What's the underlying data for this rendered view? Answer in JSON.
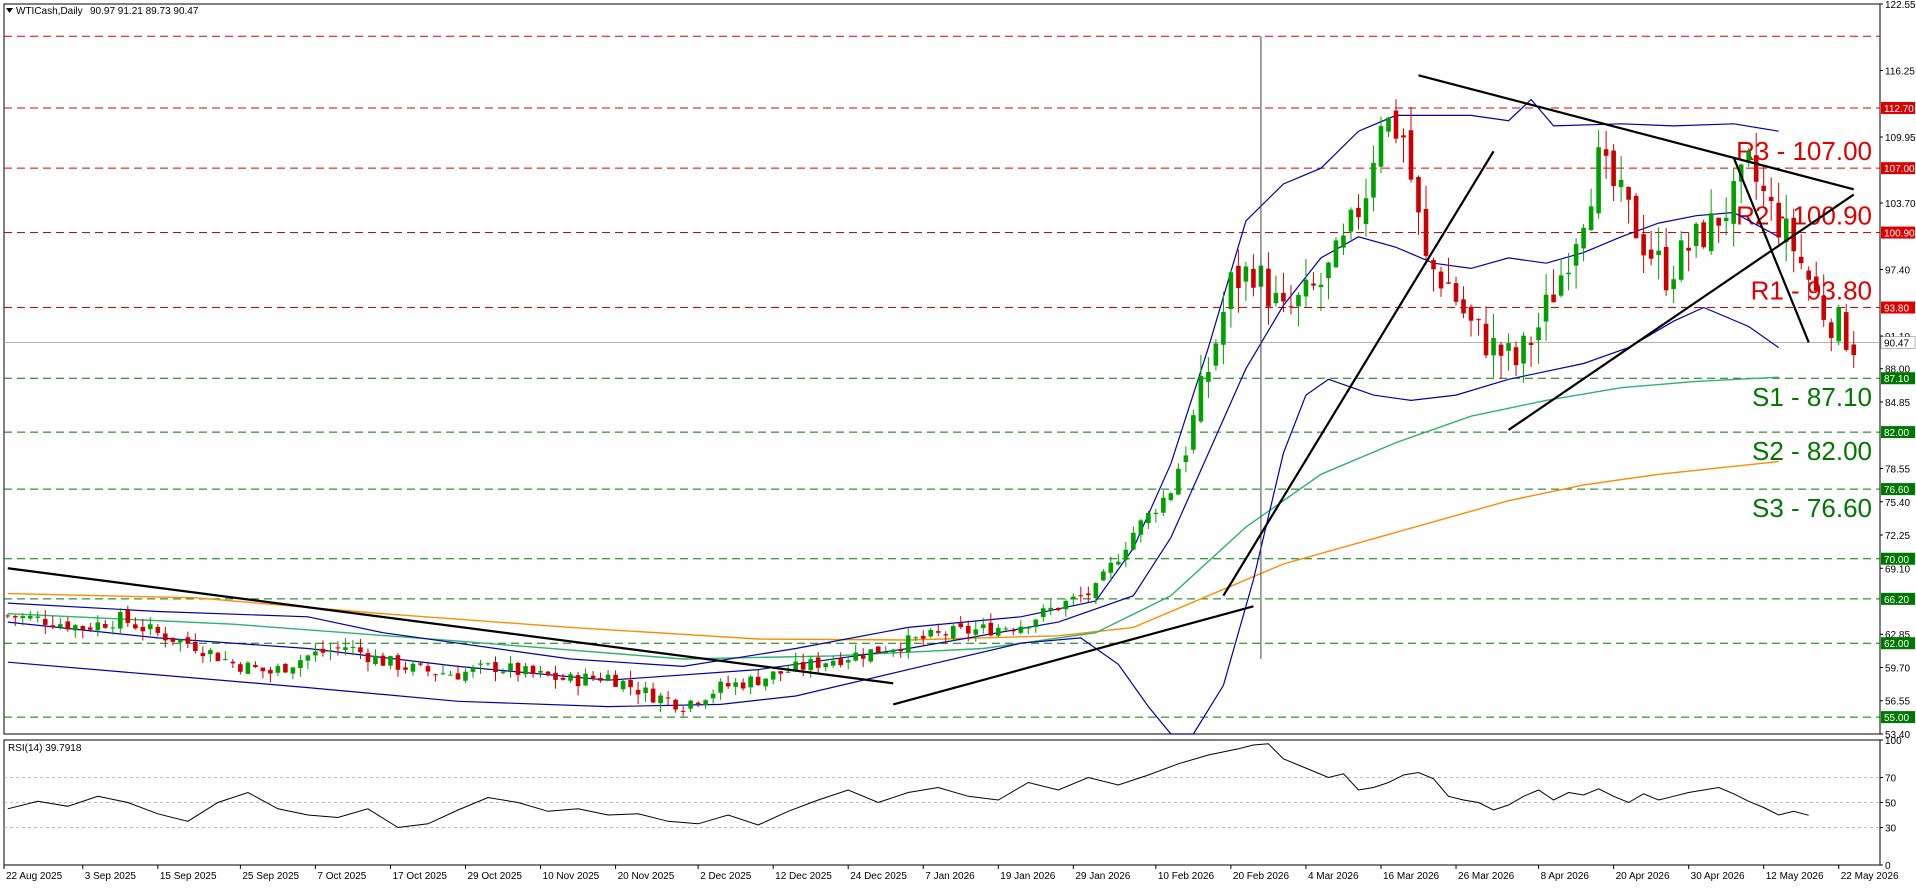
{
  "header": {
    "symbol_label": "WTICash,Daily",
    "ohlc": "90.97 91.21 89.73 90.47"
  },
  "colors": {
    "background": "#ffffff",
    "bull_candle": "#00a000",
    "bear_candle": "#cc0000",
    "resistance": "#dd0000",
    "support": "#007700",
    "bollinger": "#0000aa",
    "ma_green": "#2db36b",
    "ma_orange": "#ff8c00",
    "trendline": "#000000",
    "rsi_line": "#000000"
  },
  "chart_data": [
    {
      "type": "candlestick",
      "title": "",
      "y_axis": {
        "ylim": [
          53.4,
          122.55
        ],
        "tick_labels": [
          "122.55",
          "116.25",
          "112.70",
          "109.95",
          "107.00",
          "103.70",
          "100.90",
          "97.40",
          "93.80",
          "91.10",
          "90.47",
          "88.00",
          "87.10",
          "84.85",
          "82.00",
          "78.55",
          "76.60",
          "75.40",
          "72.25",
          "70.00",
          "69.10",
          "66.20",
          "62.85",
          "62.00",
          "59.70",
          "56.55",
          "55.00",
          "53.40"
        ],
        "position": "right"
      },
      "x_axis": {
        "tick_labels": [
          "22 Aug 2025",
          "3 Sep 2025",
          "15 Sep 2025",
          "25 Sep 2025",
          "7 Oct 2025",
          "17 Oct 2025",
          "29 Oct 2025",
          "10 Nov 2025",
          "20 Nov 2025",
          "2 Dec 2025",
          "12 Dec 2025",
          "24 Dec 2025",
          "7 Jan 2026",
          "19 Jan 2026",
          "29 Jan 2026",
          "10 Feb 2026",
          "20 Feb 2026",
          "4 Mar 2026",
          "16 Mar 2026",
          "26 Mar 2026",
          "8 Apr 2026",
          "20 Apr 2026",
          "30 Apr 2026",
          "12 May 2026",
          "22 May 2026"
        ]
      },
      "levels": {
        "resistance": [
          {
            "name": "R3 - 107.00",
            "value": 107.0
          },
          {
            "name": "R2 - 100.90",
            "value": 100.9
          },
          {
            "name": "R1 - 93.80",
            "value": 93.8
          }
        ],
        "support": [
          {
            "name": "S1 - 87.10",
            "value": 87.1
          },
          {
            "name": "S2 - 82.00",
            "value": 82.0
          },
          {
            "name": "S3 - 76.60",
            "value": 76.6
          }
        ],
        "other_red": [
          119.5,
          112.7
        ],
        "other_green": [
          70.0,
          66.2,
          62.0,
          55.0
        ],
        "current_price": 90.47
      },
      "price_points": [
        [
          0,
          64.6
        ],
        [
          5,
          64.2
        ],
        [
          10,
          63.5
        ],
        [
          15,
          64.3
        ],
        [
          20,
          62.9
        ],
        [
          25,
          61.8
        ],
        [
          30,
          60.1
        ],
        [
          35,
          59.2
        ],
        [
          40,
          60.8
        ],
        [
          45,
          61.7
        ],
        [
          50,
          60.3
        ],
        [
          55,
          59.4
        ],
        [
          60,
          59.1
        ],
        [
          65,
          59.8
        ],
        [
          70,
          59.0
        ],
        [
          75,
          58.5
        ],
        [
          80,
          58.9
        ],
        [
          85,
          57.3
        ],
        [
          90,
          56.2
        ],
        [
          95,
          57.8
        ],
        [
          100,
          58.6
        ],
        [
          105,
          59.6
        ],
        [
          110,
          60.5
        ],
        [
          115,
          61.2
        ],
        [
          120,
          62.1
        ],
        [
          125,
          62.9
        ],
        [
          130,
          63.3
        ],
        [
          135,
          63.8
        ],
        [
          140,
          65.5
        ],
        [
          145,
          67.0
        ],
        [
          150,
          72.5
        ],
        [
          155,
          76.5
        ],
        [
          158,
          83.0
        ],
        [
          160,
          88.0
        ],
        [
          163,
          96.0
        ],
        [
          166,
          97.5
        ],
        [
          170,
          93.0
        ],
        [
          175,
          96.0
        ],
        [
          178,
          99.5
        ],
        [
          181,
          105.0
        ],
        [
          183,
          112.0
        ],
        [
          186,
          110.0
        ],
        [
          189,
          98.0
        ],
        [
          192,
          96.0
        ],
        [
          195,
          92.0
        ],
        [
          198,
          90.0
        ],
        [
          201,
          88.5
        ],
        [
          204,
          92.0
        ],
        [
          207,
          97.0
        ],
        [
          210,
          103.0
        ],
        [
          212,
          107.5
        ],
        [
          215,
          104.0
        ],
        [
          218,
          100.0
        ],
        [
          221,
          97.0
        ],
        [
          224,
          99.5
        ],
        [
          227,
          101.5
        ],
        [
          230,
          104.0
        ],
        [
          232,
          107.0
        ],
        [
          235,
          103.0
        ],
        [
          238,
          99.5
        ],
        [
          240,
          96.5
        ],
        [
          242,
          93.5
        ],
        [
          244,
          92.0
        ],
        [
          246,
          90.5
        ]
      ],
      "bollinger_upper": [
        [
          0,
          65.8
        ],
        [
          20,
          65.0
        ],
        [
          40,
          64.5
        ],
        [
          50,
          63.0
        ],
        [
          60,
          62.0
        ],
        [
          75,
          60.5
        ],
        [
          90,
          59.8
        ],
        [
          105,
          61.5
        ],
        [
          120,
          63.5
        ],
        [
          135,
          64.5
        ],
        [
          145,
          66.0
        ],
        [
          150,
          71.0
        ],
        [
          155,
          79.0
        ],
        [
          160,
          90.0
        ],
        [
          165,
          102.0
        ],
        [
          170,
          105.5
        ],
        [
          175,
          107.0
        ],
        [
          180,
          110.5
        ],
        [
          185,
          112.0
        ],
        [
          195,
          112.0
        ],
        [
          200,
          111.5
        ],
        [
          203,
          113.5
        ],
        [
          206,
          111.0
        ],
        [
          215,
          111.2
        ],
        [
          222,
          111.0
        ],
        [
          230,
          111.2
        ],
        [
          236,
          110.5
        ]
      ],
      "bollinger_mid": [
        [
          0,
          64.0
        ],
        [
          20,
          62.5
        ],
        [
          40,
          61.5
        ],
        [
          60,
          59.8
        ],
        [
          80,
          58.5
        ],
        [
          100,
          59.5
        ],
        [
          120,
          61.5
        ],
        [
          140,
          64.0
        ],
        [
          150,
          66.5
        ],
        [
          155,
          72.0
        ],
        [
          160,
          80.0
        ],
        [
          165,
          88.0
        ],
        [
          170,
          94.0
        ],
        [
          175,
          98.5
        ],
        [
          180,
          100.5
        ],
        [
          185,
          99.5
        ],
        [
          190,
          98.0
        ],
        [
          195,
          97.5
        ],
        [
          200,
          98.5
        ],
        [
          205,
          98.0
        ],
        [
          210,
          99.0
        ],
        [
          215,
          100.5
        ],
        [
          220,
          101.8
        ],
        [
          225,
          102.5
        ],
        [
          230,
          102.8
        ],
        [
          236,
          100.5
        ]
      ],
      "bollinger_lower": [
        [
          0,
          60.2
        ],
        [
          20,
          59.0
        ],
        [
          40,
          57.8
        ],
        [
          60,
          56.5
        ],
        [
          80,
          56.0
        ],
        [
          95,
          56.2
        ],
        [
          105,
          57.0
        ],
        [
          120,
          59.5
        ],
        [
          135,
          62.0
        ],
        [
          143,
          62.5
        ],
        [
          148,
          60.0
        ],
        [
          152,
          56.0
        ],
        [
          155,
          53.4
        ],
        [
          158,
          53.4
        ],
        [
          162,
          58.0
        ],
        [
          166,
          68.0
        ],
        [
          170,
          80.0
        ],
        [
          173,
          85.5
        ],
        [
          176,
          87.0
        ],
        [
          182,
          85.5
        ],
        [
          187,
          85.0
        ],
        [
          193,
          85.5
        ],
        [
          200,
          87.0
        ],
        [
          210,
          88.5
        ],
        [
          216,
          90.0
        ],
        [
          222,
          92.5
        ],
        [
          226,
          93.8
        ],
        [
          232,
          92.0
        ],
        [
          236,
          90.0
        ]
      ],
      "ma_green": [
        [
          0,
          64.8
        ],
        [
          30,
          63.8
        ],
        [
          60,
          62.2
        ],
        [
          90,
          60.5
        ],
        [
          110,
          60.8
        ],
        [
          130,
          61.5
        ],
        [
          145,
          63.0
        ],
        [
          155,
          66.5
        ],
        [
          165,
          73.0
        ],
        [
          175,
          78.0
        ],
        [
          185,
          81.0
        ],
        [
          195,
          83.5
        ],
        [
          205,
          85.0
        ],
        [
          215,
          86.2
        ],
        [
          225,
          86.8
        ],
        [
          236,
          87.2
        ]
      ],
      "ma_orange": [
        [
          0,
          66.7
        ],
        [
          25,
          66.3
        ],
        [
          50,
          64.8
        ],
        [
          75,
          63.5
        ],
        [
          100,
          62.4
        ],
        [
          120,
          62.3
        ],
        [
          140,
          62.7
        ],
        [
          150,
          63.5
        ],
        [
          160,
          66.5
        ],
        [
          170,
          69.5
        ],
        [
          180,
          71.5
        ],
        [
          190,
          73.5
        ],
        [
          200,
          75.5
        ],
        [
          210,
          77.0
        ],
        [
          220,
          78.0
        ],
        [
          236,
          79.2
        ]
      ],
      "trendlines": [
        {
          "from": [
            0,
            69.1
          ],
          "to": [
            118,
            58.2
          ]
        },
        {
          "from": [
            118,
            56.2
          ],
          "to": [
            166,
            65.5
          ]
        },
        {
          "from": [
            162,
            66.5
          ],
          "to": [
            198,
            108.6
          ]
        },
        {
          "from": [
            188,
            115.8
          ],
          "to": [
            246,
            105.0
          ]
        },
        {
          "from": [
            200,
            82.2
          ],
          "to": [
            246,
            104.5
          ]
        },
        {
          "from": [
            230,
            108.0
          ],
          "to": [
            240,
            90.5
          ]
        }
      ],
      "spike": {
        "x": 167,
        "low": 60.5,
        "high": 119.5
      }
    },
    {
      "type": "line",
      "title": "RSI(14) 39.7918",
      "y_axis": {
        "ylim": [
          0,
          100
        ],
        "tick_labels": [
          "100",
          "70",
          "50",
          "30",
          "0"
        ],
        "levels": [
          70,
          50,
          30
        ]
      },
      "series": [
        {
          "name": "RSI(14)",
          "values": [
            [
              0,
              45
            ],
            [
              4,
              51
            ],
            [
              8,
              47
            ],
            [
              12,
              55
            ],
            [
              16,
              50
            ],
            [
              20,
              41
            ],
            [
              24,
              35
            ],
            [
              28,
              50
            ],
            [
              32,
              58
            ],
            [
              36,
              45
            ],
            [
              40,
              40
            ],
            [
              44,
              38
            ],
            [
              48,
              45
            ],
            [
              52,
              30
            ],
            [
              56,
              33
            ],
            [
              60,
              44
            ],
            [
              64,
              54
            ],
            [
              68,
              50
            ],
            [
              72,
              43
            ],
            [
              76,
              45
            ],
            [
              80,
              40
            ],
            [
              84,
              41
            ],
            [
              88,
              35
            ],
            [
              92,
              33
            ],
            [
              96,
              40
            ],
            [
              100,
              32
            ],
            [
              104,
              43
            ],
            [
              108,
              52
            ],
            [
              112,
              60
            ],
            [
              116,
              50
            ],
            [
              120,
              58
            ],
            [
              124,
              62
            ],
            [
              128,
              55
            ],
            [
              132,
              52
            ],
            [
              136,
              66
            ],
            [
              140,
              60
            ],
            [
              144,
              70
            ],
            [
              148,
              64
            ],
            [
              152,
              72
            ],
            [
              156,
              81
            ],
            [
              160,
              88
            ],
            [
              164,
              93
            ],
            [
              166,
              96
            ],
            [
              168,
              97
            ],
            [
              170,
              85
            ],
            [
              172,
              80
            ],
            [
              176,
              70
            ],
            [
              178,
              73
            ],
            [
              180,
              60
            ],
            [
              182,
              62
            ],
            [
              184,
              66
            ],
            [
              186,
              72
            ],
            [
              188,
              74
            ],
            [
              190,
              69
            ],
            [
              192,
              55
            ],
            [
              194,
              52
            ],
            [
              196,
              50
            ],
            [
              198,
              44
            ],
            [
              200,
              48
            ],
            [
              202,
              55
            ],
            [
              204,
              60
            ],
            [
              206,
              52
            ],
            [
              208,
              58
            ],
            [
              210,
              56
            ],
            [
              212,
              61
            ],
            [
              214,
              55
            ],
            [
              216,
              50
            ],
            [
              218,
              57
            ],
            [
              220,
              52
            ],
            [
              222,
              55
            ],
            [
              224,
              58
            ],
            [
              226,
              60
            ],
            [
              228,
              62
            ],
            [
              230,
              57
            ],
            [
              232,
              51
            ],
            [
              234,
              46
            ],
            [
              236,
              40
            ],
            [
              238,
              43
            ],
            [
              240,
              39.8
            ]
          ]
        }
      ]
    }
  ]
}
